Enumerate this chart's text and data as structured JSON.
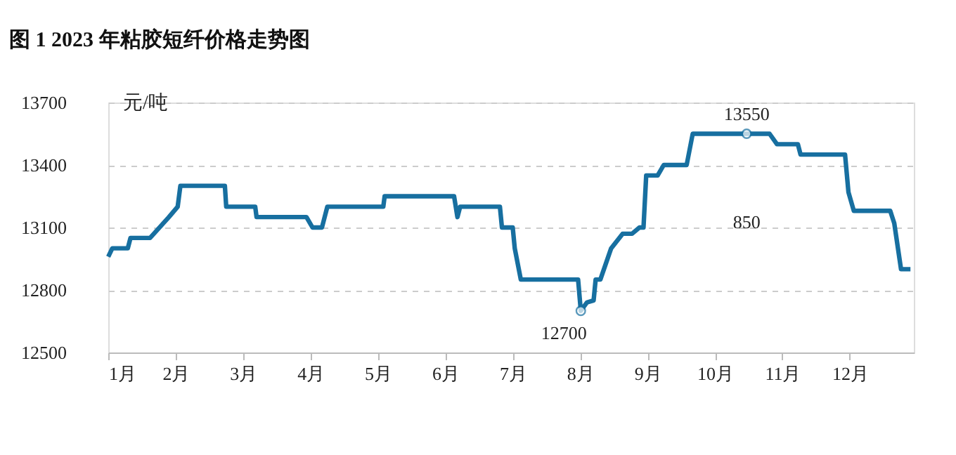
{
  "chart_data": {
    "type": "line",
    "title": "图 1 2023 年粘胶短纤价格走势图",
    "ylabel": "元/吨",
    "x": [
      1.0,
      1.06,
      1.29,
      1.33,
      1.62,
      1.9,
      2.03,
      2.07,
      2.73,
      2.75,
      3.18,
      3.2,
      3.94,
      4.03,
      4.17,
      4.25,
      5.08,
      5.1,
      6.13,
      6.18,
      6.22,
      6.27,
      6.81,
      6.84,
      7.0,
      7.03,
      7.12,
      7.97,
      8.01,
      8.1,
      8.2,
      8.23,
      8.3,
      8.46,
      8.63,
      8.77,
      8.88,
      8.94,
      8.98,
      9.15,
      9.24,
      9.58,
      9.67,
      10.47,
      10.81,
      10.92,
      11.23,
      11.27,
      11.93,
      11.98,
      12.06,
      12.6,
      12.66,
      12.76,
      12.9
    ],
    "series": [
      {
        "color": "#176fa0",
        "values": [
          12960,
          13000,
          13000,
          13050,
          13050,
          13150,
          13200,
          13300,
          13300,
          13200,
          13200,
          13150,
          13150,
          13100,
          13100,
          13200,
          13200,
          13250,
          13250,
          13150,
          13200,
          13200,
          13200,
          13100,
          13100,
          13000,
          12850,
          12850,
          12700,
          12740,
          12750,
          12850,
          12850,
          13000,
          13070,
          13070,
          13100,
          13100,
          13350,
          13350,
          13400,
          13400,
          13550,
          13550,
          13550,
          13500,
          13500,
          13450,
          13450,
          13270,
          13180,
          13180,
          13120,
          12900,
          12900
        ]
      }
    ],
    "xlim": [
      1,
      12.95
    ],
    "xticks": [
      {
        "value": 1,
        "label": "1月"
      },
      {
        "value": 2,
        "label": "2月"
      },
      {
        "value": 3,
        "label": "3月"
      },
      {
        "value": 4,
        "label": "4月"
      },
      {
        "value": 5,
        "label": "5月"
      },
      {
        "value": 6,
        "label": "6月"
      },
      {
        "value": 7,
        "label": "7月"
      },
      {
        "value": 8,
        "label": "8月"
      },
      {
        "value": 9,
        "label": "9月"
      },
      {
        "value": 10,
        "label": "10月"
      },
      {
        "value": 11,
        "label": "11月"
      },
      {
        "value": 12,
        "label": "12月"
      }
    ],
    "ylim": [
      12500,
      13700
    ],
    "yticks": [
      12500,
      12800,
      13100,
      13400,
      13700
    ],
    "grid": "y",
    "legend": false,
    "marker": "none",
    "line_style": "solid",
    "annotations": [
      {
        "text": "12700",
        "x": 8.01,
        "y": 12700
      },
      {
        "text": "13550",
        "x": 10.47,
        "y": 13550
      },
      "850"
    ]
  }
}
